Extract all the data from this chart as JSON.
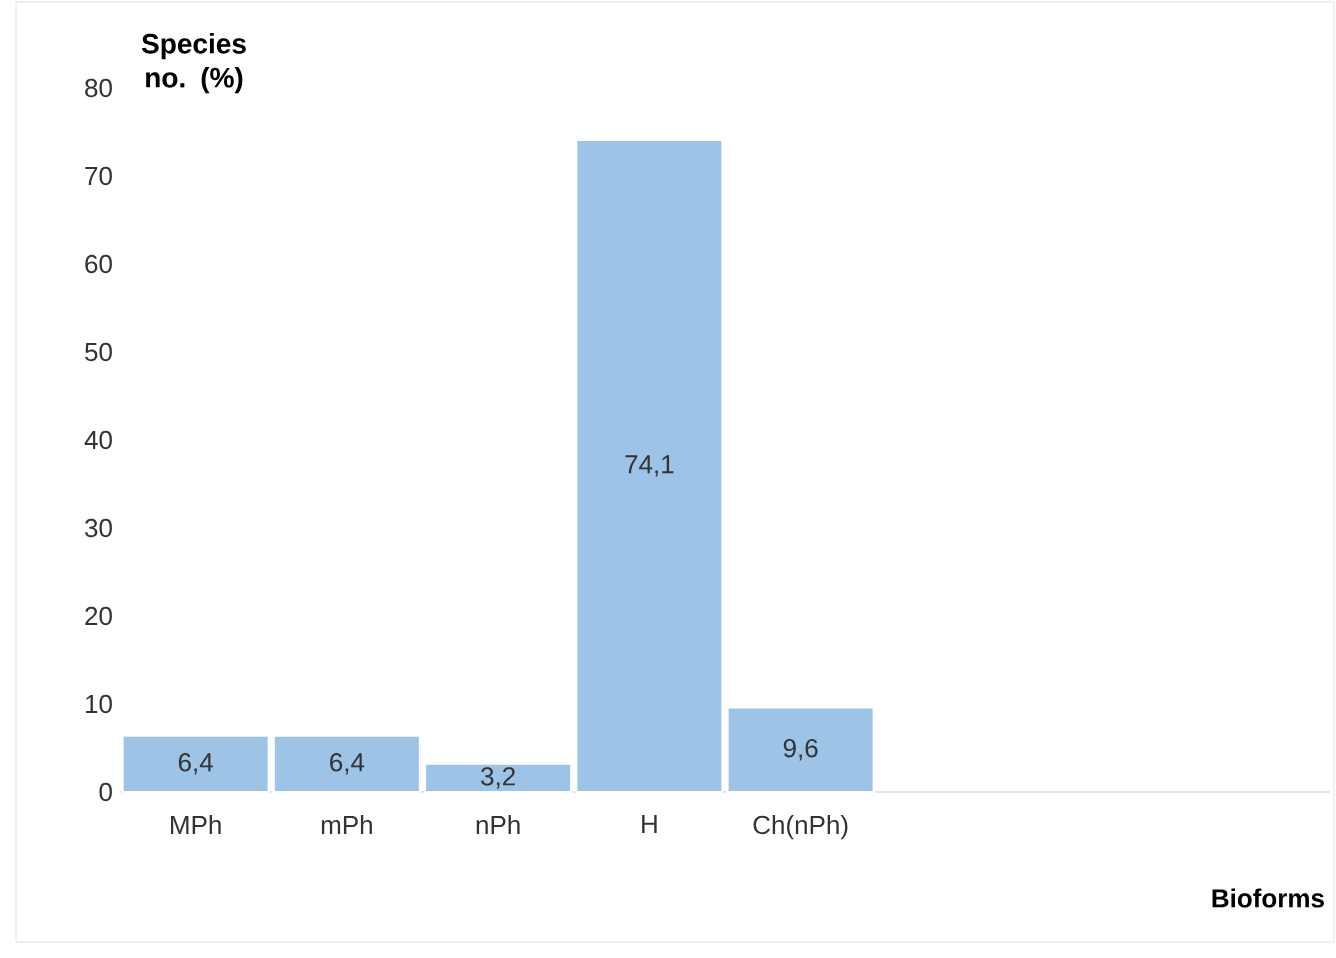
{
  "chart_data": {
    "type": "bar",
    "xlabel": "Bioforms",
    "ylabel": "Species no. (%)",
    "categories": [
      "MPh",
      "mPh",
      "nPh",
      "H",
      "Ch(nPh)",
      null,
      null,
      null
    ],
    "values": [
      6.4,
      6.4,
      3.2,
      74.1,
      9.6,
      null,
      null,
      null
    ],
    "value_labels": [
      "6,4",
      "6,4",
      "3,2",
      "74,1",
      "9,6",
      null,
      null,
      null
    ],
    "color": "#9dc3e6",
    "ylim": [
      0,
      80
    ],
    "yticks": [
      0,
      10,
      20,
      30,
      40,
      50,
      60,
      70,
      80
    ]
  }
}
